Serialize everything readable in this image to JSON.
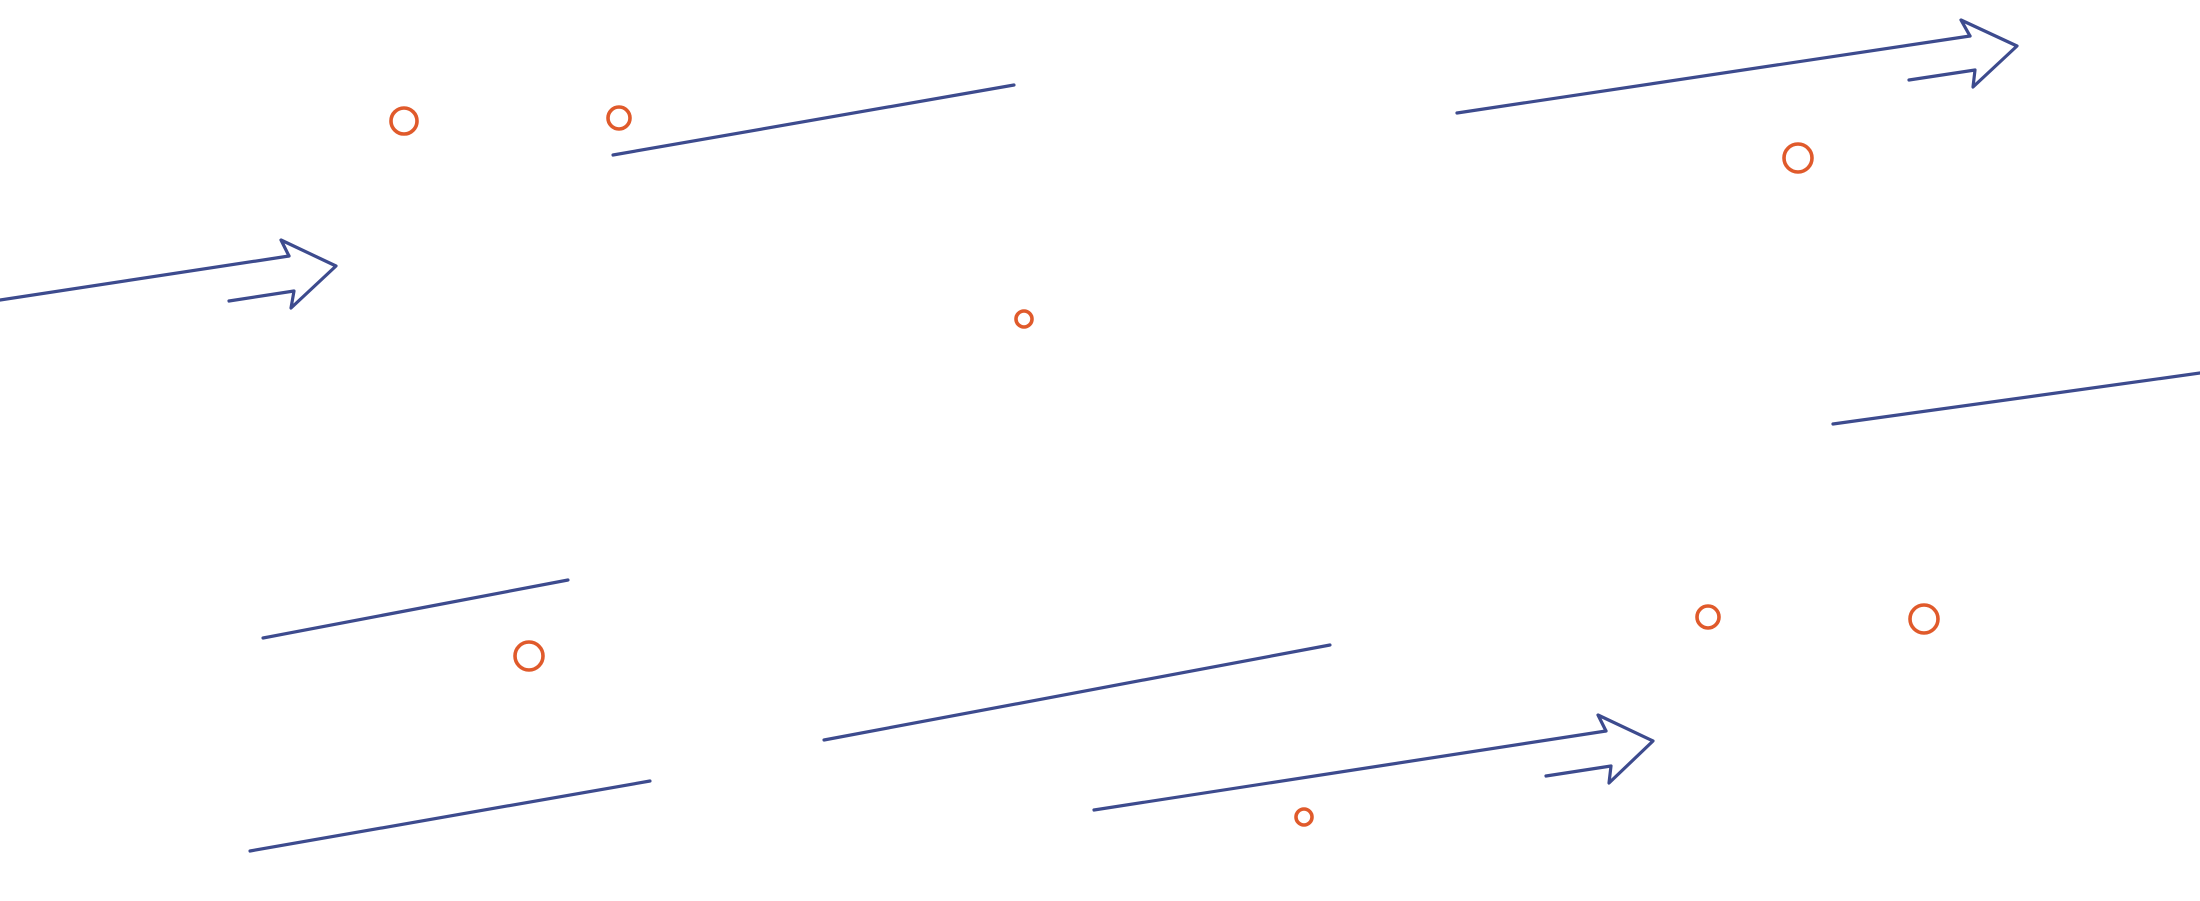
{
  "colors": {
    "line": "#3d4b8e",
    "circle": "#e05a2b",
    "background": "#ffffff"
  },
  "graphic": {
    "icon": "decorative-arrows-and-circles-pattern"
  }
}
